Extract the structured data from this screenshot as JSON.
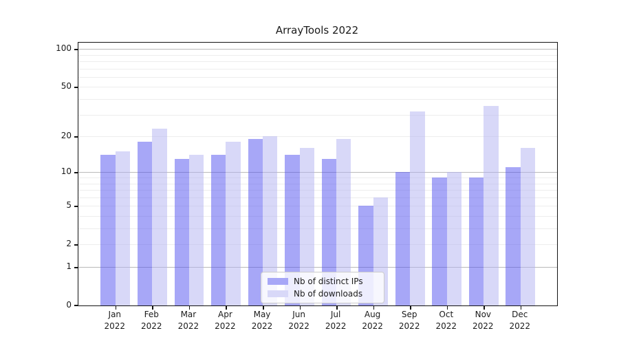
{
  "figure": {
    "background_color": "#ffffff",
    "text_color": "#1a1a1a"
  },
  "chart_data": {
    "type": "bar",
    "title": "ArrayTools 2022",
    "xlabel": "",
    "ylabel": "",
    "categories": [
      "Jan 2022",
      "Feb 2022",
      "Mar 2022",
      "Apr 2022",
      "May 2022",
      "Jun 2022",
      "Jul 2022",
      "Aug 2022",
      "Sep 2022",
      "Oct 2022",
      "Nov 2022",
      "Dec 2022"
    ],
    "series": [
      {
        "name": "Nb of distinct IPs",
        "values": [
          14,
          18,
          13,
          14,
          19,
          14,
          13,
          5,
          10,
          9,
          9,
          11
        ],
        "fill_rgba": "rgba(79,79,239,0.5)",
        "swatch_hex": "#a7a7f7"
      },
      {
        "name": "Nb of downloads",
        "values": [
          15,
          23,
          14,
          18,
          20,
          16,
          19,
          6,
          32,
          10,
          35,
          16
        ],
        "fill_rgba": "rgba(177,177,241,0.5)",
        "swatch_hex": "#d8d8f8"
      }
    ],
    "yscale": "log1p",
    "ylim": [
      0,
      112
    ],
    "yticks": [
      100,
      50,
      20,
      10,
      5,
      2,
      1,
      0
    ],
    "ytick_labels": [
      "100",
      "50",
      "20",
      "10",
      "5",
      "2",
      "1",
      "0"
    ],
    "major_gridlines": [
      1,
      10,
      100
    ],
    "minor_gridlines": [
      2,
      3,
      4,
      5,
      6,
      7,
      8,
      9,
      20,
      30,
      40,
      50,
      60,
      70,
      80,
      90
    ],
    "grid": "horizontal",
    "legend_position": "lower center",
    "colors": {
      "grid_major": "#b9b9b9",
      "grid_minor": "#ededed",
      "spine": "#111111",
      "bar_distinct_ips_on_white": "#a7a7f7",
      "bar_downloads_on_white": "#d8d8f8"
    }
  }
}
